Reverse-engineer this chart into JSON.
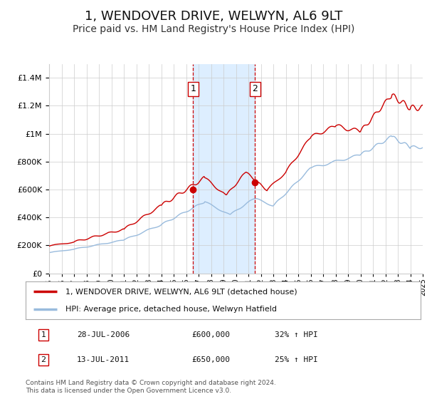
{
  "title": "1, WENDOVER DRIVE, WELWYN, AL6 9LT",
  "subtitle": "Price paid vs. HM Land Registry's House Price Index (HPI)",
  "title_fontsize": 13,
  "subtitle_fontsize": 10,
  "background_color": "#ffffff",
  "plot_bg_color": "#ffffff",
  "grid_color": "#cccccc",
  "legend_label_red": "1, WENDOVER DRIVE, WELWYN, AL6 9LT (detached house)",
  "legend_label_blue": "HPI: Average price, detached house, Welwyn Hatfield",
  "footer": "Contains HM Land Registry data © Crown copyright and database right 2024.\nThis data is licensed under the Open Government Licence v3.0.",
  "sale1_date": "28-JUL-2006",
  "sale1_price": "£600,000",
  "sale1_hpi": "32% ↑ HPI",
  "sale1_year": 2006.57,
  "sale1_value": 600000,
  "sale2_date": "13-JUL-2011",
  "sale2_price": "£650,000",
  "sale2_hpi": "25% ↑ HPI",
  "sale2_year": 2011.53,
  "sale2_value": 650000,
  "shaded_region_color": "#ddeeff",
  "vline_color": "#cc0000",
  "marker_color": "#cc0000",
  "red_line_color": "#cc0000",
  "blue_line_color": "#99bbdd",
  "ylim_min": 0,
  "ylim_max": 1500000,
  "xlim_min": 1995,
  "xlim_max": 2025
}
